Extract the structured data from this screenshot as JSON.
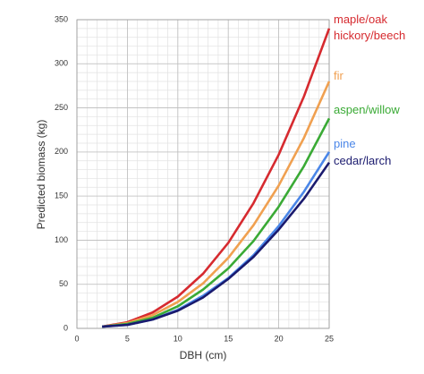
{
  "chart_data": {
    "type": "line",
    "x_label": "DBH (cm)",
    "y_label": "Predicted biomass (kg)",
    "x": [
      2.5,
      5,
      7.5,
      10,
      12.5,
      15,
      17.5,
      20,
      22.5,
      25
    ],
    "series": [
      {
        "name": "maple/oak hickory/beech",
        "color": "#d62a2f",
        "values": [
          2,
          7,
          18,
          36,
          62,
          97,
          142,
          197,
          263,
          340
        ]
      },
      {
        "name": "fir",
        "color": "#f0a050",
        "values": [
          2,
          6,
          15,
          30,
          51,
          80,
          117,
          162,
          216,
          280
        ]
      },
      {
        "name": "aspen/willow",
        "color": "#3aaa35",
        "values": [
          2,
          5,
          12,
          25,
          44,
          68,
          99,
          138,
          184,
          238
        ]
      },
      {
        "name": "pine",
        "color": "#4a86e8",
        "values": [
          2,
          4,
          10,
          21,
          37,
          57,
          83,
          116,
          155,
          200
        ]
      },
      {
        "name": "cedar/larch",
        "color": "#1a1a6e",
        "values": [
          2,
          4,
          10,
          20,
          35,
          56,
          81,
          112,
          147,
          188
        ]
      }
    ],
    "xlim": [
      0,
      25
    ],
    "xticks": [
      0,
      5,
      10,
      15,
      20,
      25
    ],
    "ylim": [
      0,
      350
    ],
    "yticks": [
      0,
      50,
      100,
      150,
      200,
      250,
      300,
      350
    ],
    "grid": true
  }
}
